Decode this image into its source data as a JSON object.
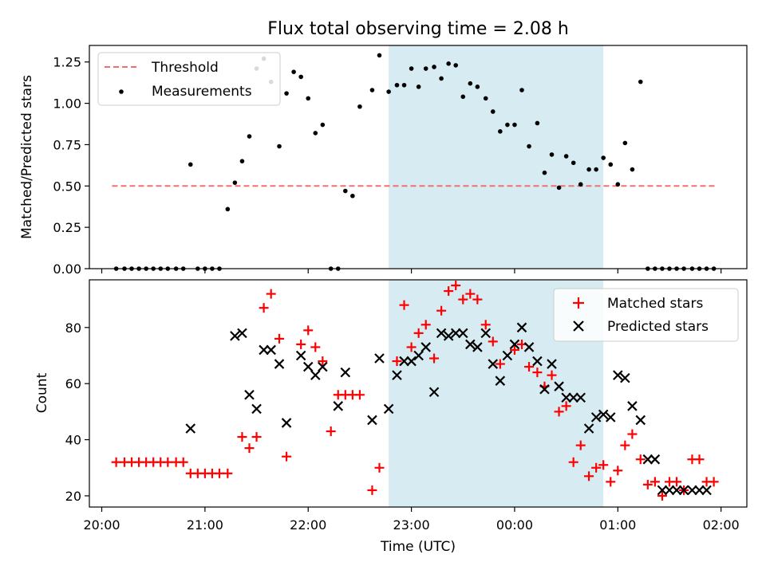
{
  "title": "Flux total observing time = 2.08 h",
  "xlabel": "Time (UTC)",
  "xtick_labels": [
    "20:00",
    "21:00",
    "22:00",
    "23:00",
    "00:00",
    "01:00",
    "02:00"
  ],
  "colors": {
    "shade": "#add8e6",
    "threshold": "#f07070",
    "matched": "#ff0000",
    "predicted": "#000000",
    "measurements": "#000000"
  },
  "chart_data": [
    {
      "type": "scatter",
      "ylabel": "Matched/Predicted stars",
      "xlim_hours": [
        19.88,
        26.25
      ],
      "ylim": [
        0,
        1.35
      ],
      "yticks": [
        "0.00",
        "0.25",
        "0.50",
        "0.75",
        "1.00",
        "1.25"
      ],
      "ytick_values": [
        0,
        0.25,
        0.5,
        0.75,
        1.0,
        1.25
      ],
      "shaded_interval_hours": [
        22.78,
        24.86
      ],
      "legend": {
        "position": "top-left",
        "entries": [
          "Threshold",
          "Measurements"
        ]
      },
      "series": [
        {
          "name": "Threshold",
          "kind": "dashed-line",
          "x_hours": [
            20.1,
            25.95
          ],
          "values": [
            0.5,
            0.5
          ]
        },
        {
          "name": "Measurements",
          "kind": "points",
          "x_hours": [
            20.14,
            20.22,
            20.29,
            20.36,
            20.43,
            20.5,
            20.57,
            20.64,
            20.72,
            20.79,
            20.86,
            20.93,
            21.0,
            21.07,
            21.14,
            21.22,
            21.29,
            21.36,
            21.43,
            21.5,
            21.57,
            21.64,
            21.72,
            21.79,
            21.86,
            21.93,
            22.0,
            22.07,
            22.14,
            22.22,
            22.29,
            22.36,
            22.43,
            22.5,
            22.62,
            22.69,
            22.78,
            22.86,
            22.93,
            23.0,
            23.07,
            23.14,
            23.22,
            23.29,
            23.36,
            23.43,
            23.5,
            23.57,
            23.64,
            23.72,
            23.79,
            23.86,
            23.93,
            24.0,
            24.07,
            24.14,
            24.22,
            24.29,
            24.36,
            24.43,
            24.5,
            24.57,
            24.64,
            24.72,
            24.79,
            24.86,
            24.93,
            25.0,
            25.07,
            25.14,
            25.22,
            25.29,
            25.36,
            25.43,
            25.5,
            25.57,
            25.64,
            25.72,
            25.79,
            25.86,
            25.93
          ],
          "values": [
            0.0,
            0.0,
            0.0,
            0.0,
            0.0,
            0.0,
            0.0,
            0.0,
            0.0,
            0.0,
            0.63,
            0.0,
            0.0,
            0.0,
            0.0,
            0.36,
            0.52,
            0.65,
            0.8,
            1.21,
            1.27,
            1.13,
            0.74,
            1.06,
            1.19,
            1.16,
            1.03,
            0.82,
            0.87,
            0.0,
            0.0,
            0.47,
            0.44,
            0.98,
            1.08,
            1.29,
            1.07,
            1.11,
            1.11,
            1.21,
            1.1,
            1.21,
            1.22,
            1.15,
            1.24,
            1.23,
            1.04,
            1.12,
            1.1,
            1.03,
            0.95,
            0.83,
            0.87,
            0.87,
            1.08,
            0.74,
            0.88,
            0.58,
            0.69,
            0.49,
            0.68,
            0.64,
            0.51,
            0.6,
            0.6,
            0.67,
            0.63,
            0.51,
            0.76,
            0.6,
            1.13,
            0.0,
            0.0,
            0.0,
            0.0,
            0.0,
            0.0,
            0.0,
            0.0,
            0.0,
            0.0
          ]
        }
      ]
    },
    {
      "type": "scatter",
      "ylabel": "Count",
      "xlabel": "Time (UTC)",
      "xlim_hours": [
        19.88,
        26.25
      ],
      "ylim": [
        16,
        97
      ],
      "yticks": [
        "20",
        "40",
        "60",
        "80"
      ],
      "ytick_values": [
        20,
        40,
        60,
        80
      ],
      "shaded_interval_hours": [
        22.78,
        24.86
      ],
      "legend": {
        "position": "top-right",
        "entries": [
          "Matched stars",
          "Predicted stars"
        ]
      },
      "series": [
        {
          "name": "Matched stars",
          "marker": "plus",
          "x_hours": [
            20.14,
            20.22,
            20.29,
            20.36,
            20.43,
            20.5,
            20.57,
            20.64,
            20.72,
            20.79,
            20.86,
            20.93,
            21.0,
            21.07,
            21.14,
            21.22,
            21.36,
            21.43,
            21.5,
            21.57,
            21.64,
            21.72,
            21.79,
            21.93,
            22.0,
            22.07,
            22.14,
            22.22,
            22.29,
            22.36,
            22.43,
            22.5,
            22.62,
            22.69,
            22.86,
            22.93,
            23.0,
            23.07,
            23.14,
            23.22,
            23.29,
            23.36,
            23.43,
            23.5,
            23.57,
            23.64,
            23.72,
            23.79,
            23.86,
            24.0,
            24.07,
            24.14,
            24.22,
            24.29,
            24.36,
            24.43,
            24.5,
            24.57,
            24.64,
            24.72,
            24.79,
            24.86,
            24.93,
            25.0,
            25.07,
            25.14,
            25.22,
            25.29,
            25.36,
            25.43,
            25.5,
            25.57,
            25.64,
            25.72,
            25.79,
            25.86,
            25.93
          ],
          "values": [
            32,
            32,
            32,
            32,
            32,
            32,
            32,
            32,
            32,
            32,
            28,
            28,
            28,
            28,
            28,
            28,
            41,
            37,
            41,
            87,
            92,
            76,
            34,
            74,
            79,
            73,
            68,
            43,
            56,
            56,
            56,
            56,
            22,
            30,
            68,
            88,
            73,
            78,
            81,
            69,
            86,
            93,
            95,
            90,
            92,
            90,
            81,
            75,
            67,
            72,
            74,
            66,
            64,
            59,
            63,
            50,
            52,
            32,
            38,
            27,
            30,
            31,
            25,
            29,
            38,
            42,
            33,
            24,
            25,
            20,
            25,
            25,
            22,
            33,
            33,
            25,
            25
          ]
        },
        {
          "name": "Predicted stars",
          "marker": "x",
          "x_hours": [
            20.86,
            21.29,
            21.36,
            21.43,
            21.5,
            21.57,
            21.64,
            21.72,
            21.79,
            21.93,
            22.0,
            22.07,
            22.14,
            22.29,
            22.36,
            22.62,
            22.69,
            22.78,
            22.86,
            22.93,
            23.0,
            23.07,
            23.14,
            23.22,
            23.29,
            23.36,
            23.43,
            23.5,
            23.57,
            23.64,
            23.72,
            23.79,
            23.86,
            23.93,
            24.0,
            24.07,
            24.14,
            24.22,
            24.29,
            24.36,
            24.43,
            24.5,
            24.57,
            24.64,
            24.72,
            24.79,
            24.86,
            24.93,
            25.0,
            25.07,
            25.14,
            25.22,
            25.29,
            25.36,
            25.43,
            25.5,
            25.57,
            25.64,
            25.72,
            25.79,
            25.86
          ],
          "values": [
            44,
            77,
            78,
            56,
            51,
            72,
            72,
            67,
            46,
            70,
            66,
            63,
            66,
            52,
            64,
            47,
            69,
            51,
            63,
            68,
            68,
            70,
            73,
            57,
            78,
            77,
            78,
            78,
            74,
            73,
            78,
            67,
            61,
            70,
            74,
            80,
            73,
            68,
            58,
            67,
            59,
            55,
            55,
            55,
            44,
            48,
            49,
            48,
            63,
            62,
            52,
            47,
            33,
            33,
            22,
            22,
            22,
            22,
            22,
            22,
            22
          ]
        }
      ]
    }
  ]
}
